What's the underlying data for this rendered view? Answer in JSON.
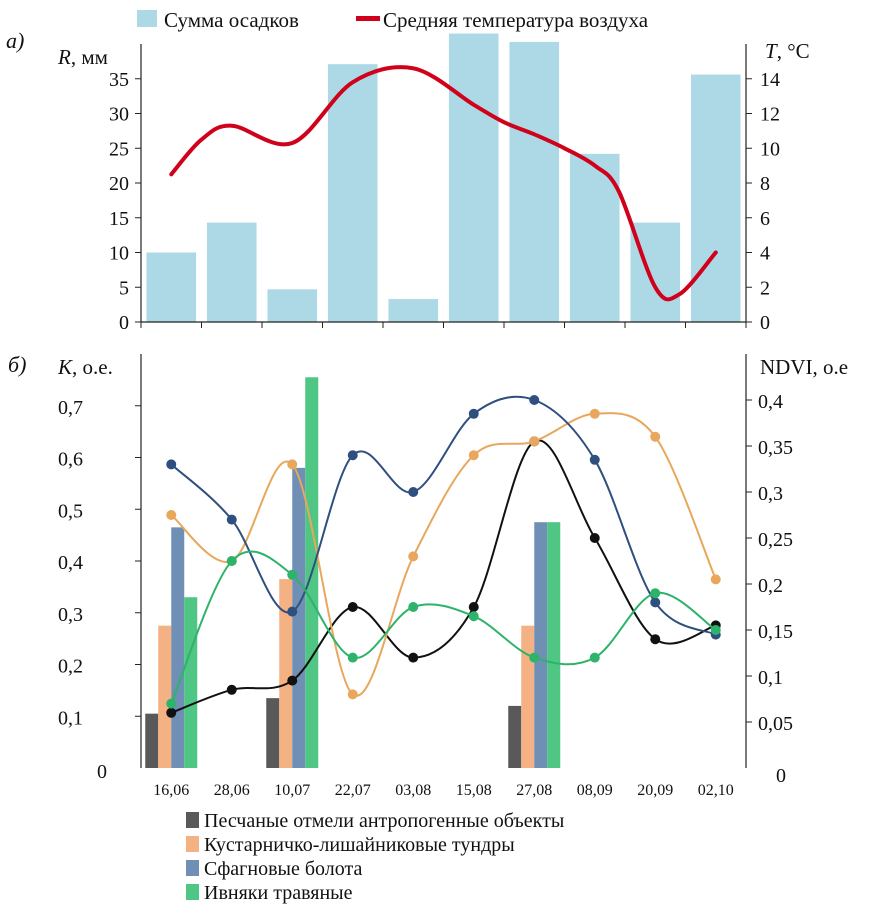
{
  "colors": {
    "precip": "#add8e6",
    "temp": "#d0021b",
    "sand": "#595959",
    "shrub": "#f4b183",
    "sphagnum": "#6f8fb5",
    "willow": "#4fc684",
    "sand_line": "#111111",
    "shrub_line": "#e8a75c",
    "sphagnum_line": "#2f4f7f",
    "willow_line": "#2db36a"
  },
  "chart_data": [
    {
      "type": "bar+line",
      "panel_label": "а)",
      "legend": [
        {
          "label": "Сумма осадков",
          "kind": "bar"
        },
        {
          "label": "Средняя температура воздуха",
          "kind": "line"
        }
      ],
      "ylabel_left": {
        "var": "R",
        "unit": ", мм"
      },
      "ylabel_right": {
        "var": "T",
        "unit": ", °С"
      },
      "ylim_left": [
        0,
        40
      ],
      "yticks_left": [
        "0",
        "5",
        "10",
        "15",
        "20",
        "25",
        "30",
        "35"
      ],
      "ylim_right": [
        0,
        16
      ],
      "yticks_right": [
        "0",
        "2",
        "4",
        "6",
        "8",
        "10",
        "12",
        "14"
      ],
      "categories": [
        "16,06",
        "28,06",
        "10,07",
        "22,07",
        "03,08",
        "15,08",
        "27,08",
        "08,09",
        "20,09",
        "02,10"
      ],
      "series": [
        {
          "name": "Сумма осадков",
          "kind": "bar",
          "axis": "left",
          "values": [
            10,
            14.3,
            4.7,
            37.1,
            3.3,
            41.5,
            40.3,
            24.2,
            14.3,
            35.6
          ]
        },
        {
          "name": "Средняя температура воздуха",
          "kind": "line",
          "axis": "right",
          "x": [
            0,
            0.5,
            1,
            2,
            3,
            4,
            5,
            5.5,
            6,
            6.5,
            7,
            7.4,
            8,
            8.4,
            9
          ],
          "values": [
            8.5,
            10.5,
            11.3,
            10.3,
            13.8,
            14.6,
            12.5,
            11.5,
            10.8,
            10.0,
            9.0,
            7.5,
            2.0,
            1.6,
            4.0
          ]
        }
      ]
    },
    {
      "type": "bar+line",
      "panel_label": "б)",
      "ylabel_left": {
        "var": "K",
        "unit": ", о.е."
      },
      "ylabel_right": {
        "var": "",
        "unit": "NDVI, о.е"
      },
      "ylim_left": [
        0,
        0.8
      ],
      "yticks_left": [
        "0",
        "0,1",
        "0,2",
        "0,3",
        "0,4",
        "0,5",
        "0,6",
        "0,7"
      ],
      "ylim_right": [
        0,
        0.45
      ],
      "yticks_right": [
        "0",
        "0,05",
        "0,1",
        "0,15",
        "0,2",
        "0,25",
        "0,3",
        "0,35",
        "0,4"
      ],
      "categories": [
        "16,06",
        "28,06",
        "10,07",
        "22,07",
        "03,08",
        "15,08",
        "27,08",
        "08,09",
        "20,09",
        "02,10"
      ],
      "bar_series": [
        {
          "name": "Песчаные отмели антропогенные объекты",
          "color_key": "sand",
          "values": [
            0.105,
            null,
            0.135,
            null,
            null,
            null,
            0.12,
            null,
            null,
            null
          ]
        },
        {
          "name": "Кустарничко-лишайниковые тундры",
          "color_key": "shrub",
          "values": [
            0.275,
            null,
            0.365,
            null,
            null,
            null,
            0.275,
            null,
            null,
            null
          ]
        },
        {
          "name": "Сфагновые болота",
          "color_key": "sphagnum",
          "values": [
            0.465,
            null,
            0.58,
            null,
            null,
            null,
            0.475,
            null,
            null,
            null
          ]
        },
        {
          "name": "Ивняки травяные",
          "color_key": "willow",
          "values": [
            0.33,
            null,
            0.755,
            null,
            null,
            null,
            0.475,
            null,
            null,
            null
          ]
        }
      ],
      "line_series": [
        {
          "color_key": "sand_line",
          "axis": "right",
          "values": [
            0.06,
            0.085,
            0.095,
            0.175,
            0.12,
            0.175,
            0.355,
            0.25,
            0.14,
            0.155
          ]
        },
        {
          "color_key": "shrub_line",
          "axis": "right",
          "values": [
            0.275,
            0.225,
            0.33,
            0.08,
            0.23,
            0.34,
            0.355,
            0.385,
            0.36,
            0.205
          ]
        },
        {
          "color_key": "sphagnum_line",
          "axis": "right",
          "values": [
            0.33,
            0.27,
            0.17,
            0.34,
            0.3,
            0.385,
            0.4,
            0.335,
            0.18,
            0.145
          ]
        },
        {
          "color_key": "willow_line",
          "axis": "right",
          "values": [
            0.07,
            0.225,
            0.21,
            0.12,
            0.175,
            0.165,
            0.12,
            0.12,
            0.19,
            0.15
          ]
        }
      ]
    }
  ]
}
